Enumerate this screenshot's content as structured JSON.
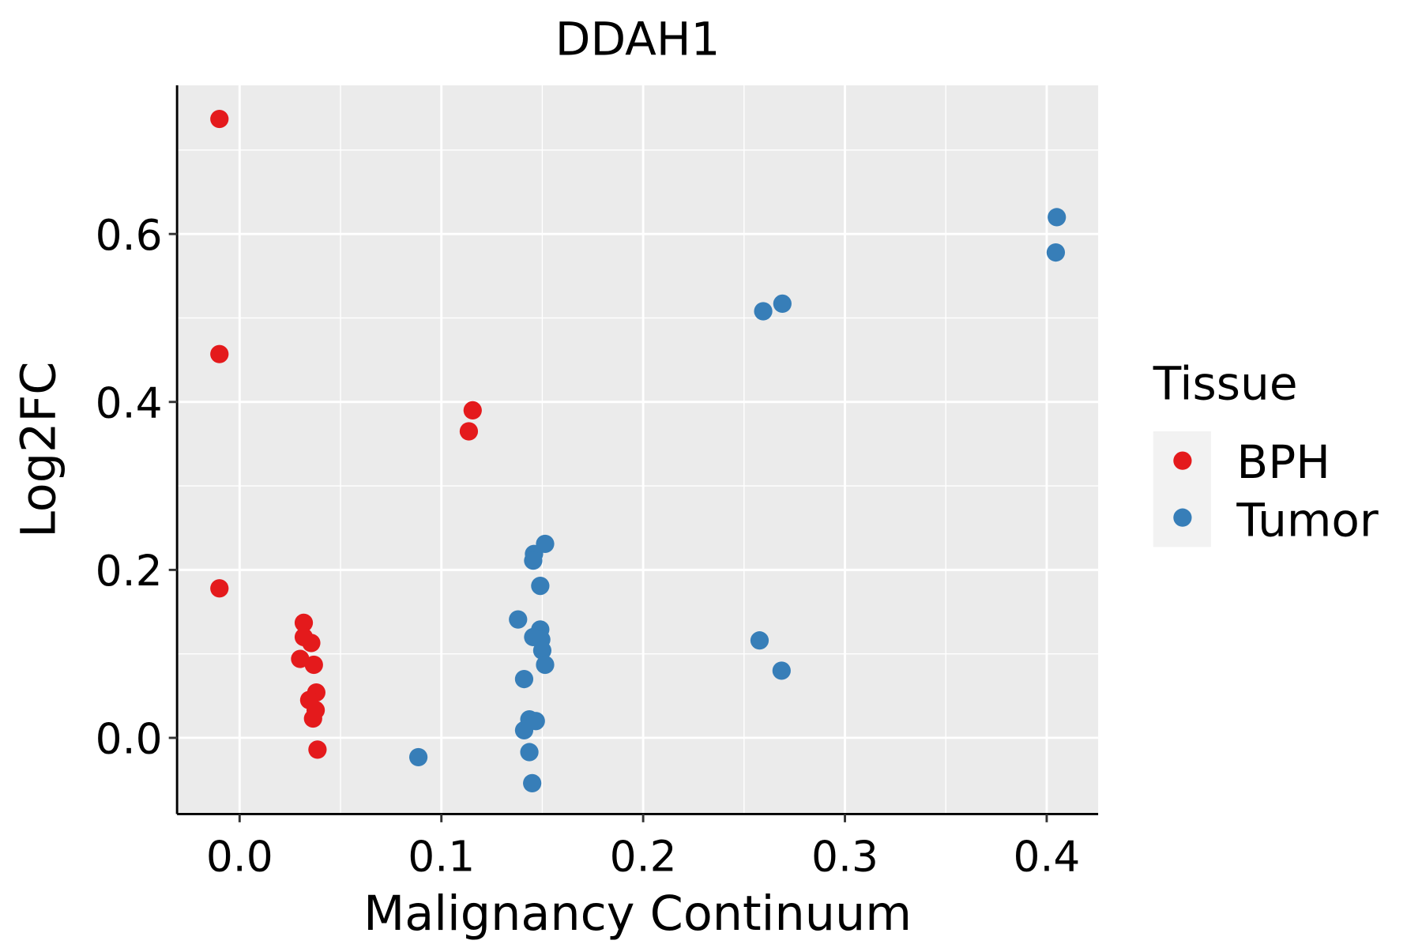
{
  "chart_data": {
    "type": "scatter",
    "title": "DDAH1",
    "xlabel": "Malignancy Continuum",
    "ylabel": "Log2FC",
    "xlim": [
      -0.031,
      0.4255
    ],
    "ylim": [
      -0.0907,
      0.777
    ],
    "xticks": [
      0.0,
      0.1,
      0.2,
      0.3,
      0.4
    ],
    "xtick_labels": [
      "0.0",
      "0.1",
      "0.2",
      "0.3",
      "0.4"
    ],
    "yticks": [
      0.0,
      0.2,
      0.4,
      0.6
    ],
    "ytick_labels": [
      "0.0",
      "0.2",
      "0.4",
      "0.6"
    ],
    "grid": true,
    "legend": {
      "title": "Tissue",
      "placement": "right"
    },
    "series": [
      {
        "name": "BPH",
        "color": "#E41A1C",
        "points": [
          [
            -0.01,
            0.737
          ],
          [
            -0.01,
            0.457
          ],
          [
            -0.01,
            0.178
          ],
          [
            0.1155,
            0.39
          ],
          [
            0.1136,
            0.365
          ],
          [
            0.0318,
            0.137
          ],
          [
            0.0318,
            0.12
          ],
          [
            0.0355,
            0.113
          ],
          [
            0.03,
            0.094
          ],
          [
            0.0368,
            0.087
          ],
          [
            0.038,
            0.054
          ],
          [
            0.0345,
            0.045
          ],
          [
            0.0377,
            0.033
          ],
          [
            0.0364,
            0.023
          ],
          [
            0.0386,
            -0.014
          ]
        ]
      },
      {
        "name": "Tumor",
        "color": "#377EB8",
        "points": [
          [
            0.405,
            0.62
          ],
          [
            0.4045,
            0.578
          ],
          [
            0.269,
            0.517
          ],
          [
            0.2595,
            0.508
          ],
          [
            0.2577,
            0.116
          ],
          [
            0.2686,
            0.08
          ],
          [
            0.0886,
            -0.023
          ],
          [
            0.1514,
            0.231
          ],
          [
            0.1459,
            0.219
          ],
          [
            0.1455,
            0.211
          ],
          [
            0.149,
            0.181
          ],
          [
            0.138,
            0.141
          ],
          [
            0.149,
            0.129
          ],
          [
            0.1455,
            0.12
          ],
          [
            0.1495,
            0.117
          ],
          [
            0.15,
            0.104
          ],
          [
            0.1514,
            0.087
          ],
          [
            0.141,
            0.07
          ],
          [
            0.1436,
            0.022
          ],
          [
            0.1468,
            0.02
          ],
          [
            0.141,
            0.009
          ],
          [
            0.1436,
            -0.017
          ],
          [
            0.145,
            -0.054
          ]
        ]
      }
    ]
  }
}
